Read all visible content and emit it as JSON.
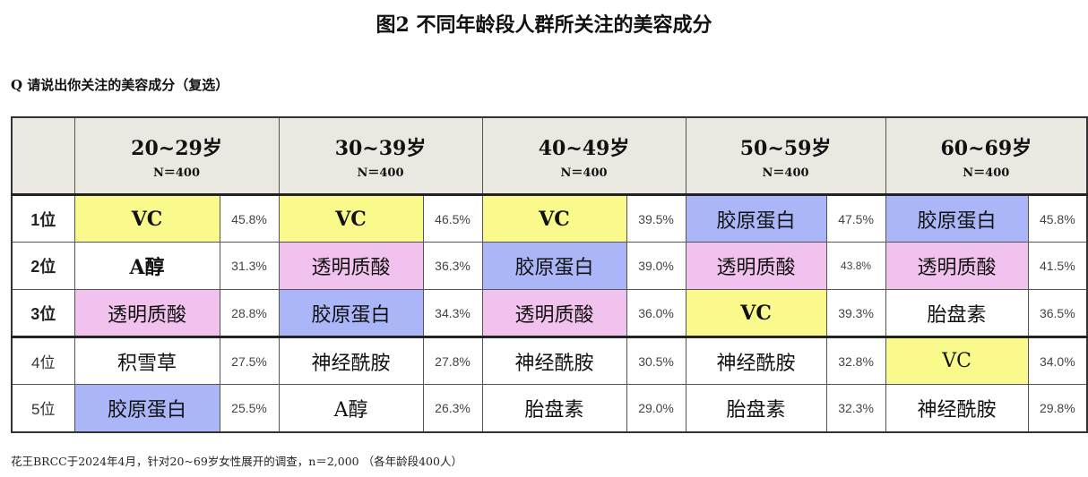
{
  "title": "图2  不同年龄段人群所关注的美容成分",
  "question": "Q 请说出你关注的美容成分（复选）",
  "colors": {
    "VC": "#fafa8c",
    "透明质酸": "#f2c2ee",
    "胶原蛋白": "#aab6f8",
    "header_bg": "#ebe8e2"
  },
  "columns": [
    {
      "age": "20~29岁",
      "n": "N＝400"
    },
    {
      "age": "30~39岁",
      "n": "N＝400"
    },
    {
      "age": "40~49岁",
      "n": "N＝400"
    },
    {
      "age": "50~59岁",
      "n": "N＝400"
    },
    {
      "age": "60~69岁",
      "n": "N＝400"
    }
  ],
  "rows": [
    {
      "rank": "1位",
      "cells": [
        {
          "name": "VC",
          "pct": "45.8%"
        },
        {
          "name": "VC",
          "pct": "46.5%"
        },
        {
          "name": "VC",
          "pct": "39.5%"
        },
        {
          "name": "胶原蛋白",
          "pct": "47.5%"
        },
        {
          "name": "胶原蛋白",
          "pct": "45.8%"
        }
      ]
    },
    {
      "rank": "2位",
      "cells": [
        {
          "name": "A醇",
          "pct": "31.3%"
        },
        {
          "name": "透明质酸",
          "pct": "36.3%"
        },
        {
          "name": "胶原蛋白",
          "pct": "39.0%"
        },
        {
          "name": "透明质酸",
          "pct": "43.8%"
        },
        {
          "name": "透明质酸",
          "pct": "41.5%"
        }
      ]
    },
    {
      "rank": "3位",
      "cells": [
        {
          "name": "透明质酸",
          "pct": "28.8%"
        },
        {
          "name": "胶原蛋白",
          "pct": "34.3%"
        },
        {
          "name": "透明质酸",
          "pct": "36.0%"
        },
        {
          "name": "VC",
          "pct": "39.3%"
        },
        {
          "name": "胎盘素",
          "pct": "36.5%"
        }
      ]
    },
    {
      "rank": "4位",
      "cells": [
        {
          "name": "积雪草",
          "pct": "27.5%"
        },
        {
          "name": "神经酰胺",
          "pct": "27.8%"
        },
        {
          "name": "神经酰胺",
          "pct": "30.5%"
        },
        {
          "name": "神经酰胺",
          "pct": "32.8%"
        },
        {
          "name": "VC",
          "pct": "34.0%"
        }
      ]
    },
    {
      "rank": "5位",
      "cells": [
        {
          "name": "胶原蛋白",
          "pct": "25.5%"
        },
        {
          "name": "A醇",
          "pct": "26.3%"
        },
        {
          "name": "胎盘素",
          "pct": "29.0%"
        },
        {
          "name": "胎盘素",
          "pct": "32.3%"
        },
        {
          "name": "神经酰胺",
          "pct": "29.8%"
        }
      ]
    }
  ],
  "footer": "花王BRCC于2024年4月，针对20~69岁女性展开的调查，n＝2,000 （各年龄段400人）"
}
